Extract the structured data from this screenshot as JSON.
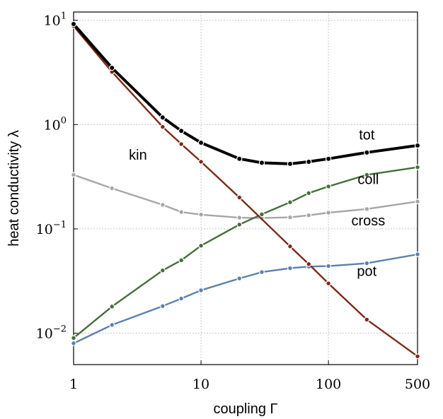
{
  "chart_data": {
    "type": "line",
    "xlabel": "coupling Γ",
    "ylabel": "heat conductivity λ",
    "xscale": "log",
    "yscale": "log",
    "xlim": [
      1,
      500
    ],
    "ylim": [
      0.005,
      12
    ],
    "grid": true,
    "x_ticks": [
      {
        "value": 1,
        "label": "1"
      },
      {
        "value": 10,
        "label": "10"
      },
      {
        "value": 100,
        "label": "100"
      },
      {
        "value": 500,
        "label": "500"
      }
    ],
    "y_ticks": [
      {
        "value": 10,
        "base": "10",
        "exp": "1"
      },
      {
        "value": 1,
        "base": "10",
        "exp": "0"
      },
      {
        "value": 0.1,
        "base": "10",
        "exp": "−1"
      },
      {
        "value": 0.01,
        "base": "10",
        "exp": "−2"
      }
    ],
    "series": [
      {
        "name": "tot",
        "color": "#000000",
        "x": [
          1,
          2,
          5,
          7,
          10,
          20,
          30,
          50,
          70,
          100,
          200,
          500
        ],
        "y": [
          9.2,
          3.5,
          1.17,
          0.87,
          0.67,
          0.47,
          0.43,
          0.42,
          0.44,
          0.47,
          0.54,
          0.63
        ]
      },
      {
        "name": "kin",
        "color": "#7a2a17",
        "x": [
          1,
          2,
          5,
          7,
          10,
          20,
          50,
          70,
          100,
          200,
          500
        ],
        "y": [
          8.8,
          3.2,
          0.95,
          0.65,
          0.44,
          0.2,
          0.068,
          0.046,
          0.03,
          0.0135,
          0.006
        ]
      },
      {
        "name": "coll",
        "color": "#466d3c",
        "x": [
          1,
          2,
          5,
          7,
          10,
          20,
          30,
          50,
          70,
          100,
          200,
          500
        ],
        "y": [
          0.009,
          0.018,
          0.04,
          0.05,
          0.069,
          0.11,
          0.138,
          0.18,
          0.22,
          0.255,
          0.33,
          0.39
        ]
      },
      {
        "name": "cross",
        "color": "#a6a6a6",
        "x": [
          1,
          2,
          5,
          7,
          10,
          20,
          30,
          50,
          70,
          100,
          200,
          500
        ],
        "y": [
          0.33,
          0.245,
          0.17,
          0.145,
          0.137,
          0.128,
          0.127,
          0.129,
          0.135,
          0.143,
          0.155,
          0.183
        ]
      },
      {
        "name": "pot",
        "color": "#5b80ae",
        "x": [
          1,
          2,
          5,
          7,
          10,
          20,
          30,
          50,
          70,
          100,
          200,
          500
        ],
        "y": [
          0.008,
          0.012,
          0.0182,
          0.0215,
          0.0258,
          0.0335,
          0.0385,
          0.042,
          0.0435,
          0.044,
          0.0468,
          0.057
        ]
      }
    ]
  }
}
